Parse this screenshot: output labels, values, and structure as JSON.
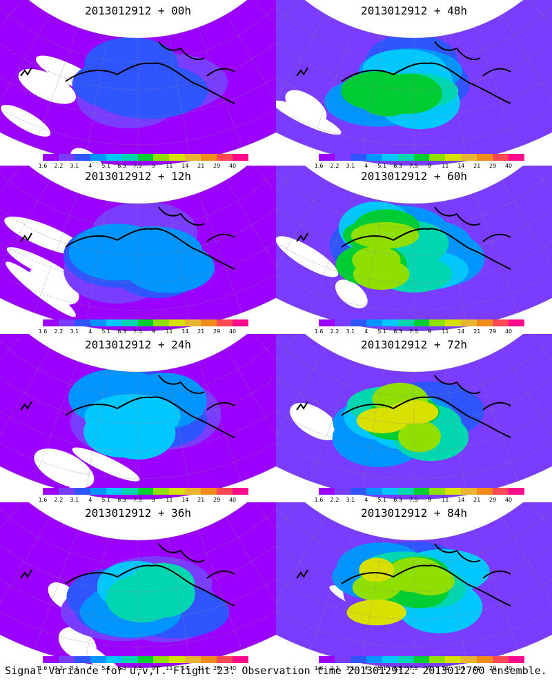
{
  "colorbar": {
    "levels": [
      "1.6",
      "2.2",
      "3.1",
      "4",
      "5.1",
      "6.3",
      "7.5",
      "9",
      "11",
      "14",
      "21",
      "29",
      "40"
    ],
    "colors": [
      "#9b00ff",
      "#7a3cff",
      "#2f55ff",
      "#0094ff",
      "#00c8ff",
      "#00d6b0",
      "#00cc33",
      "#8fe000",
      "#d8e000",
      "#e8b432",
      "#f08c1e",
      "#ff4a55",
      "#ff0a8c"
    ]
  },
  "panels": [
    {
      "title": "2013012912 + 00h",
      "level": 0
    },
    {
      "title": "2013012912 + 48h",
      "level": 4
    },
    {
      "title": "2013012912 + 12h",
      "level": 1
    },
    {
      "title": "2013012912 + 60h",
      "level": 5
    },
    {
      "title": "2013012912 + 24h",
      "level": 2
    },
    {
      "title": "2013012912 + 72h",
      "level": 6
    },
    {
      "title": "2013012912 + 36h",
      "level": 3
    },
    {
      "title": "2013012912 + 84h",
      "level": 7
    }
  ],
  "caption": "Signal Variance for u,v,T. Flight 23. Observation time 2013012912. 2013012700 ensemble."
}
